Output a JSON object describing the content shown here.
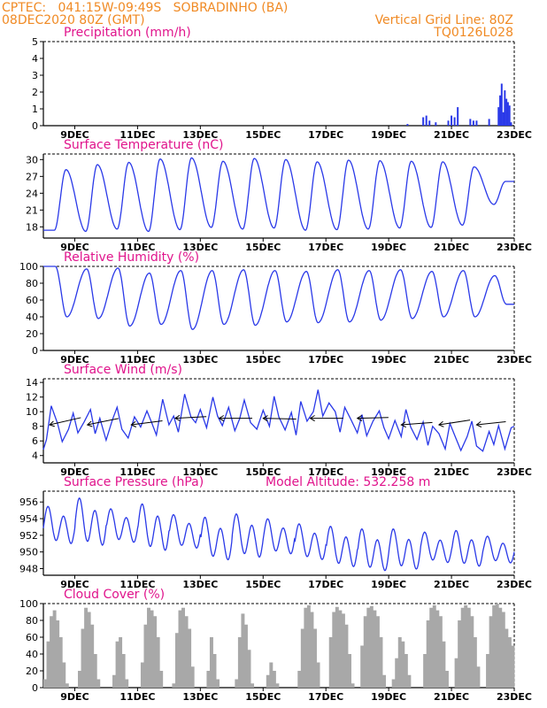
{
  "header": {
    "line1": "CPTEC:   041:15W-09:49S   SOBRADINHO (BA)",
    "line2": "08DEC2020 80Z (GMT)",
    "grid_note": "Vertical Grid Line: 80Z",
    "run_code": "TQ0126L028",
    "altitude_note": "Model Altitude: 532.258 m"
  },
  "colors": {
    "header": "#f08a24",
    "title": "#e0148c",
    "line": "#2a39e8",
    "bars": "#2a39e8",
    "cloud": "#a8a8a8",
    "arrows": "#000000"
  },
  "x_axis": {
    "start_day": 8,
    "end_day": 23,
    "ticks": [
      {
        "day": 9,
        "label": "9DEC"
      },
      {
        "day": 11,
        "label": "11DEC"
      },
      {
        "day": 13,
        "label": "13DEC"
      },
      {
        "day": 15,
        "label": "15DEC"
      },
      {
        "day": 17,
        "label": "17DEC"
      },
      {
        "day": 19,
        "label": "19DEC"
      },
      {
        "day": 21,
        "label": "21DEC"
      },
      {
        "day": 23,
        "label": "23DEC"
      }
    ]
  },
  "chart_data": [
    {
      "type": "bar",
      "title": "Precipitation (mm/h)",
      "ylim": [
        0,
        5
      ],
      "yticks": [
        0,
        1,
        2,
        3,
        4,
        5
      ],
      "x": [
        19.6,
        20.1,
        20.2,
        20.3,
        20.5,
        20.9,
        21.0,
        21.1,
        21.2,
        21.6,
        21.7,
        21.8,
        22.2,
        22.5,
        22.55,
        22.6,
        22.65,
        22.7,
        22.75,
        22.8,
        22.85,
        22.9
      ],
      "values": [
        0.1,
        0.5,
        0.6,
        0.3,
        0.2,
        0.3,
        0.6,
        0.5,
        1.1,
        0.4,
        0.3,
        0.3,
        0.4,
        1.1,
        1.8,
        2.5,
        0.8,
        2.1,
        1.6,
        1.4,
        1.2,
        0.2
      ]
    },
    {
      "type": "line",
      "title": "Surface Temperature (nC)",
      "ylim": [
        16,
        31
      ],
      "yticks": [
        18,
        21,
        24,
        27,
        30
      ],
      "mean": 23.6,
      "amplitude": 6.0,
      "peaks": [
        28.2,
        29.1,
        29.5,
        30.1,
        30.3,
        29.7,
        30.2,
        30.0,
        29.6,
        29.9,
        29.8,
        29.7,
        29.6,
        28.7,
        26.1
      ],
      "troughs": [
        17.4,
        17.2,
        17.6,
        17.2,
        17.5,
        17.9,
        17.6,
        17.8,
        17.4,
        17.5,
        17.6,
        17.8,
        17.9,
        18.3,
        22.0
      ]
    },
    {
      "type": "line",
      "title": "Relative Humidity (%)",
      "ylim": [
        0,
        100
      ],
      "yticks": [
        0,
        20,
        40,
        60,
        80,
        100
      ],
      "peaks": [
        100,
        97,
        98,
        92,
        95,
        95,
        96,
        95,
        94,
        96,
        95,
        96,
        94,
        95,
        89
      ],
      "troughs": [
        40,
        38,
        29,
        31,
        25,
        31,
        30,
        34,
        33,
        34,
        36,
        38,
        40,
        40,
        55
      ]
    },
    {
      "type": "line",
      "title": "Surface Wind (m/s)",
      "ylim": [
        3,
        14.5
      ],
      "yticks": [
        4,
        6,
        8,
        10,
        12,
        14
      ],
      "x": [
        8.0,
        8.1,
        8.25,
        8.45,
        8.6,
        8.8,
        8.95,
        9.1,
        9.3,
        9.5,
        9.65,
        9.8,
        10.0,
        10.2,
        10.35,
        10.5,
        10.7,
        10.9,
        11.1,
        11.3,
        11.45,
        11.6,
        11.8,
        12.0,
        12.15,
        12.3,
        12.5,
        12.7,
        12.85,
        13.0,
        13.2,
        13.4,
        13.55,
        13.7,
        13.9,
        14.1,
        14.25,
        14.4,
        14.6,
        14.8,
        15.0,
        15.2,
        15.35,
        15.5,
        15.7,
        15.9,
        16.05,
        16.2,
        16.4,
        16.6,
        16.75,
        16.9,
        17.1,
        17.3,
        17.45,
        17.6,
        17.8,
        18.0,
        18.15,
        18.3,
        18.5,
        18.7,
        18.85,
        19.0,
        19.2,
        19.4,
        19.55,
        19.7,
        19.9,
        20.1,
        20.25,
        20.4,
        20.6,
        20.8,
        20.95,
        21.1,
        21.3,
        21.5,
        21.65,
        21.8,
        22.0,
        22.2,
        22.35,
        22.5,
        22.7,
        22.9,
        23.0
      ],
      "values": [
        4.8,
        6.2,
        10.8,
        8.4,
        5.9,
        7.6,
        9.8,
        7.1,
        8.6,
        10.3,
        7.0,
        9.1,
        6.1,
        8.9,
        10.6,
        7.6,
        6.4,
        9.3,
        7.9,
        10.1,
        8.5,
        6.8,
        11.7,
        8.2,
        9.4,
        7.2,
        12.4,
        9.3,
        8.5,
        10.3,
        7.8,
        12.0,
        9.4,
        8.1,
        10.6,
        7.4,
        9.0,
        11.6,
        8.5,
        7.6,
        10.2,
        8.0,
        12.1,
        9.3,
        7.5,
        9.9,
        6.8,
        11.4,
        8.7,
        10.0,
        13.0,
        9.4,
        11.2,
        10.0,
        7.2,
        10.6,
        8.9,
        7.1,
        9.6,
        6.7,
        8.7,
        10.1,
        7.8,
        6.3,
        8.8,
        6.6,
        10.3,
        7.9,
        6.2,
        8.6,
        5.4,
        8.0,
        7.0,
        4.9,
        8.4,
        6.8,
        4.7,
        6.6,
        8.7,
        5.3,
        4.6,
        7.3,
        5.5,
        8.1,
        4.9,
        7.8,
        8.0
      ],
      "wind_vectors": [
        {
          "day": 8.2,
          "dx": 1.6,
          "dy": -0.9
        },
        {
          "day": 9.4,
          "dx": 1.6,
          "dy": -0.8
        },
        {
          "day": 10.8,
          "dx": 1.6,
          "dy": -0.5
        },
        {
          "day": 12.2,
          "dx": 1.6,
          "dy": -0.2
        },
        {
          "day": 13.6,
          "dx": 1.7,
          "dy": 0.0
        },
        {
          "day": 15.0,
          "dx": 1.7,
          "dy": 0.1
        },
        {
          "day": 16.5,
          "dx": 1.7,
          "dy": 0.0
        },
        {
          "day": 18.0,
          "dx": 1.6,
          "dy": -0.1
        },
        {
          "day": 19.4,
          "dx": 1.6,
          "dy": -0.3
        },
        {
          "day": 20.6,
          "dx": 1.6,
          "dy": -0.6
        },
        {
          "day": 21.8,
          "dx": 1.5,
          "dy": -0.4
        }
      ]
    },
    {
      "type": "line",
      "title": "Surface Pressure (hPa)",
      "ylim": [
        947.2,
        957.3
      ],
      "yticks": [
        948,
        950,
        952,
        954,
        956
      ],
      "diurnal_high": [
        955.5,
        956.5,
        955.2,
        955.8,
        954.5,
        954.2,
        954.6,
        954.0,
        953.4,
        953.1,
        952.8,
        952.8,
        952.4,
        952.6,
        951.9
      ],
      "diurnal_low": [
        950.6,
        950.3,
        950.8,
        949.7,
        950.1,
        948.6,
        948.9,
        949.4,
        948.7,
        947.8,
        947.3,
        947.5,
        948.4,
        947.9,
        948.4
      ]
    },
    {
      "type": "bar",
      "title": "Cloud Cover (%)",
      "ylim": [
        0,
        100
      ],
      "yticks": [
        0,
        20,
        40,
        60,
        80,
        100
      ],
      "x": [
        8.05,
        8.15,
        8.25,
        8.35,
        8.45,
        8.55,
        8.65,
        8.75,
        8.85,
        8.95,
        9.05,
        9.15,
        9.25,
        9.35,
        9.45,
        9.55,
        9.65,
        9.75,
        9.85,
        9.95,
        10.05,
        10.15,
        10.25,
        10.35,
        10.45,
        10.55,
        10.65,
        10.75,
        10.85,
        10.95,
        11.05,
        11.15,
        11.25,
        11.35,
        11.45,
        11.55,
        11.65,
        11.75,
        11.85,
        11.95,
        12.05,
        12.15,
        12.25,
        12.35,
        12.45,
        12.55,
        12.65,
        12.75,
        12.85,
        12.95,
        13.05,
        13.15,
        13.25,
        13.35,
        13.45,
        13.55,
        13.65,
        13.75,
        13.85,
        13.95,
        14.05,
        14.15,
        14.25,
        14.35,
        14.45,
        14.55,
        14.65,
        14.75,
        14.85,
        14.95,
        15.05,
        15.15,
        15.25,
        15.35,
        15.45,
        15.55,
        15.65,
        15.75,
        15.85,
        15.95,
        16.05,
        16.15,
        16.25,
        16.35,
        16.45,
        16.55,
        16.65,
        16.75,
        16.85,
        16.95,
        17.05,
        17.15,
        17.25,
        17.35,
        17.45,
        17.55,
        17.65,
        17.75,
        17.85,
        17.95,
        18.05,
        18.15,
        18.25,
        18.35,
        18.45,
        18.55,
        18.65,
        18.75,
        18.85,
        18.95,
        19.05,
        19.15,
        19.25,
        19.35,
        19.45,
        19.55,
        19.65,
        19.75,
        19.85,
        19.95,
        20.05,
        20.15,
        20.25,
        20.35,
        20.45,
        20.55,
        20.65,
        20.75,
        20.85,
        20.95,
        21.05,
        21.15,
        21.25,
        21.35,
        21.45,
        21.55,
        21.65,
        21.75,
        21.85,
        21.95,
        22.05,
        22.15,
        22.25,
        22.35,
        22.45,
        22.55,
        22.65,
        22.75,
        22.85,
        22.95
      ],
      "values": [
        10,
        55,
        85,
        92,
        80,
        60,
        30,
        5,
        0,
        0,
        0,
        20,
        70,
        95,
        90,
        75,
        40,
        10,
        0,
        0,
        0,
        0,
        15,
        55,
        60,
        40,
        10,
        0,
        0,
        0,
        0,
        30,
        75,
        95,
        92,
        85,
        60,
        20,
        0,
        0,
        0,
        5,
        65,
        92,
        95,
        85,
        70,
        25,
        0,
        0,
        0,
        0,
        20,
        60,
        40,
        10,
        0,
        0,
        0,
        0,
        0,
        10,
        60,
        88,
        75,
        45,
        5,
        0,
        0,
        0,
        0,
        15,
        30,
        20,
        5,
        0,
        0,
        0,
        0,
        0,
        0,
        20,
        70,
        95,
        98,
        90,
        70,
        30,
        0,
        0,
        0,
        60,
        90,
        96,
        92,
        88,
        75,
        40,
        5,
        0,
        0,
        50,
        85,
        95,
        97,
        92,
        85,
        60,
        15,
        0,
        0,
        10,
        35,
        60,
        55,
        40,
        15,
        0,
        0,
        0,
        0,
        40,
        80,
        95,
        98,
        92,
        85,
        55,
        20,
        0,
        0,
        35,
        80,
        95,
        98,
        95,
        85,
        60,
        25,
        0,
        0,
        40,
        85,
        98,
        100,
        95,
        90,
        70,
        60,
        50
      ]
    }
  ]
}
